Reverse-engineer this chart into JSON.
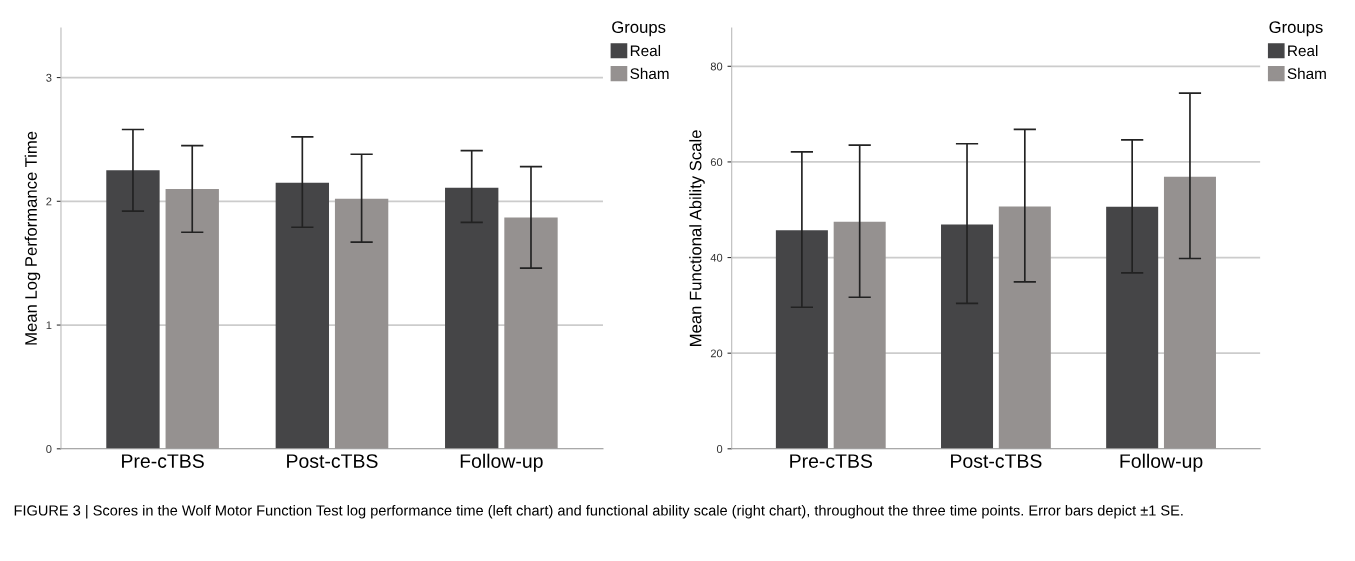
{
  "chart_data": [
    {
      "type": "bar",
      "ylabel": "Mean Log Performance Time",
      "categories": [
        "Pre-cTBS",
        "Post-cTBS",
        "Follow-up"
      ],
      "legend_title": "Groups",
      "legend": "top right",
      "series": [
        {
          "name": "Real",
          "color": "#454547",
          "values": [
            2.25,
            2.15,
            2.11
          ],
          "errors": [
            [
              1.92,
              2.58
            ],
            [
              1.79,
              2.52
            ],
            [
              1.83,
              2.41
            ]
          ]
        },
        {
          "name": "Sham",
          "color": "#959190",
          "values": [
            2.1,
            2.02,
            1.87
          ],
          "errors": [
            [
              1.75,
              2.45
            ],
            [
              1.67,
              2.38
            ],
            [
              1.46,
              2.28
            ]
          ]
        }
      ],
      "ylim": [
        0,
        3.4
      ],
      "yticks": [
        0,
        1,
        2,
        3
      ],
      "grid": "y"
    },
    {
      "type": "bar",
      "ylabel": "Mean Functional Ability Scale",
      "categories": [
        "Pre-cTBS",
        "Post-cTBS",
        "Follow-up"
      ],
      "legend_title": "Groups",
      "legend": "top right",
      "series": [
        {
          "name": "Real",
          "color": "#454547",
          "values": [
            45.7,
            46.9,
            50.6
          ],
          "errors": [
            [
              29.6,
              62.1
            ],
            [
              30.4,
              63.8
            ],
            [
              36.8,
              64.6
            ]
          ]
        },
        {
          "name": "Sham",
          "color": "#959190",
          "values": [
            47.5,
            50.7,
            56.9
          ],
          "errors": [
            [
              31.7,
              63.5
            ],
            [
              34.9,
              66.8
            ],
            [
              39.8,
              74.4
            ]
          ]
        }
      ],
      "ylim": [
        0,
        88
      ],
      "yticks": [
        0,
        20,
        40,
        60,
        80
      ],
      "grid": "y",
      "annotations": [
        "FIGURE 3 | Scores in the Wolf Motor Function Test log performance time (left chart) and functional ability scale (right chart), throughout the three time points. Error bars depict ±1 SE."
      ]
    }
  ]
}
